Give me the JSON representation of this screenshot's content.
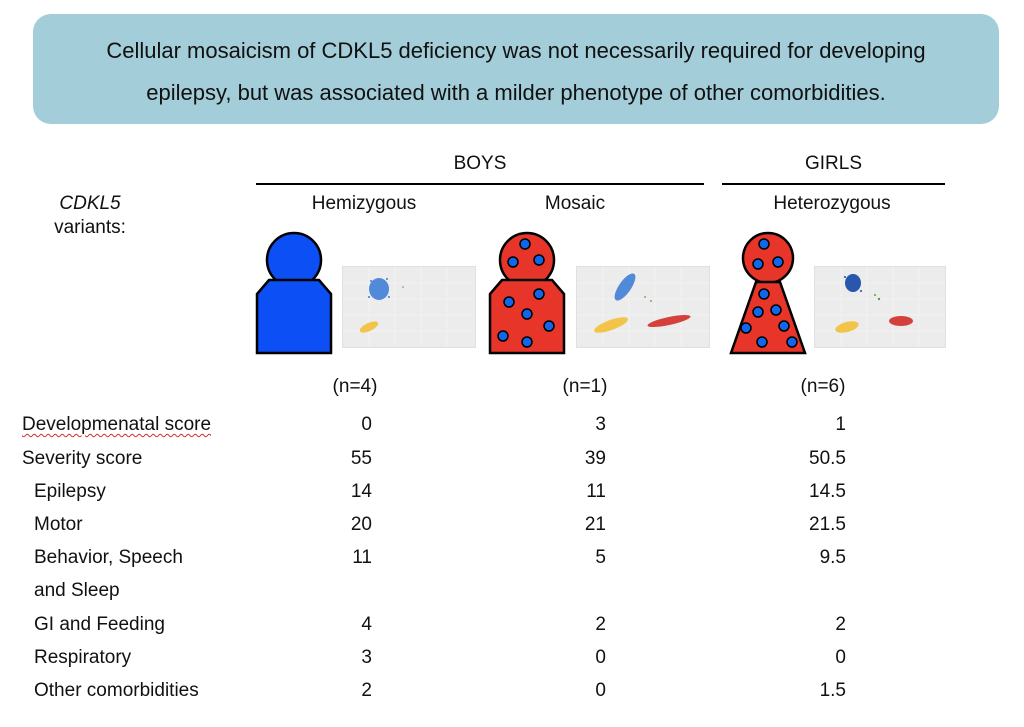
{
  "banner": {
    "line1": "Cellular mosaicism of CDKL5 deficiency was not necessarily required for developing",
    "line2": "epilepsy, but was associated with a milder phenotype of other comorbidities."
  },
  "groups": {
    "boys": "BOYS",
    "girls": "GIRLS"
  },
  "variants_label": {
    "gene": "CDKL5",
    "word": "variants:"
  },
  "columns": [
    {
      "label": "Hemizygous",
      "n": "(n=4)"
    },
    {
      "label": "Mosaic",
      "n": "(n=1)"
    },
    {
      "label": "Heterozygous",
      "n": "(n=6)"
    }
  ],
  "rows": [
    {
      "label": "Developmenatal score",
      "values": [
        "0",
        "3",
        "1"
      ]
    },
    {
      "label": "Severity score",
      "values": [
        "55",
        "39",
        "50.5"
      ]
    },
    {
      "label": "Epilepsy",
      "values": [
        "14",
        "11",
        "14.5"
      ]
    },
    {
      "label": "Motor",
      "values": [
        "20",
        "21",
        "21.5"
      ]
    },
    {
      "label": "Behavior, Speech",
      "values": [
        "11",
        "5",
        "9.5"
      ]
    },
    {
      "label": "and Sleep",
      "values": [
        "",
        "",
        ""
      ]
    },
    {
      "label": "GI and Feeding",
      "values": [
        "4",
        "2",
        "2"
      ]
    },
    {
      "label": "Respiratory",
      "values": [
        "3",
        "0",
        "0"
      ]
    },
    {
      "label": "Other comorbidities",
      "values": [
        "2",
        "0",
        "1.5"
      ]
    }
  ],
  "colors": {
    "banner": "#a3cdd9",
    "figure_blue": "#0b4ff5",
    "figure_red": "#e8352a",
    "dot_blue": "#1166ee",
    "scatter_blue": "#3f7fd6",
    "scatter_yellow": "#f2c54a",
    "scatter_red": "#d4403c",
    "scatter_green": "#5e9e3a"
  },
  "icons": {
    "hemizygous_figure": "person-icon-solid-blue",
    "mosaic_figure": "person-icon-red-with-blue-dots",
    "heterozygous_figure": "person-icon-red-dress-with-blue-dots"
  }
}
